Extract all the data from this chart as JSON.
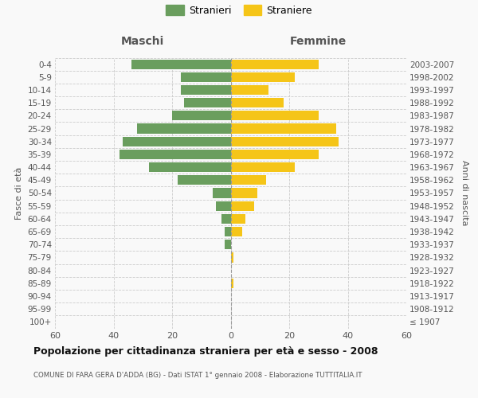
{
  "age_groups": [
    "100+",
    "95-99",
    "90-94",
    "85-89",
    "80-84",
    "75-79",
    "70-74",
    "65-69",
    "60-64",
    "55-59",
    "50-54",
    "45-49",
    "40-44",
    "35-39",
    "30-34",
    "25-29",
    "20-24",
    "15-19",
    "10-14",
    "5-9",
    "0-4"
  ],
  "birth_years": [
    "≤ 1907",
    "1908-1912",
    "1913-1917",
    "1918-1922",
    "1923-1927",
    "1928-1932",
    "1933-1937",
    "1938-1942",
    "1943-1947",
    "1948-1952",
    "1953-1957",
    "1958-1962",
    "1963-1967",
    "1968-1972",
    "1973-1977",
    "1978-1982",
    "1983-1987",
    "1988-1992",
    "1993-1997",
    "1998-2002",
    "2003-2007"
  ],
  "maschi": [
    0,
    0,
    0,
    0,
    0,
    0,
    2,
    2,
    3,
    5,
    6,
    18,
    28,
    38,
    37,
    32,
    20,
    16,
    17,
    17,
    34
  ],
  "femmine": [
    0,
    0,
    0,
    1,
    0,
    1,
    0,
    4,
    5,
    8,
    9,
    12,
    22,
    30,
    37,
    36,
    30,
    18,
    13,
    22,
    30
  ],
  "male_color": "#6a9e5e",
  "female_color": "#f5c518",
  "background_color": "#f9f9f9",
  "grid_color": "#cccccc",
  "title": "Popolazione per cittadinanza straniera per età e sesso - 2008",
  "subtitle": "COMUNE DI FARA GERA D'ADDA (BG) - Dati ISTAT 1° gennaio 2008 - Elaborazione TUTTITALIA.IT",
  "xlabel_left": "Maschi",
  "xlabel_right": "Femmine",
  "ylabel_left": "Fasce di età",
  "ylabel_right": "Anni di nascita",
  "legend_male": "Stranieri",
  "legend_female": "Straniere",
  "xlim": 60
}
